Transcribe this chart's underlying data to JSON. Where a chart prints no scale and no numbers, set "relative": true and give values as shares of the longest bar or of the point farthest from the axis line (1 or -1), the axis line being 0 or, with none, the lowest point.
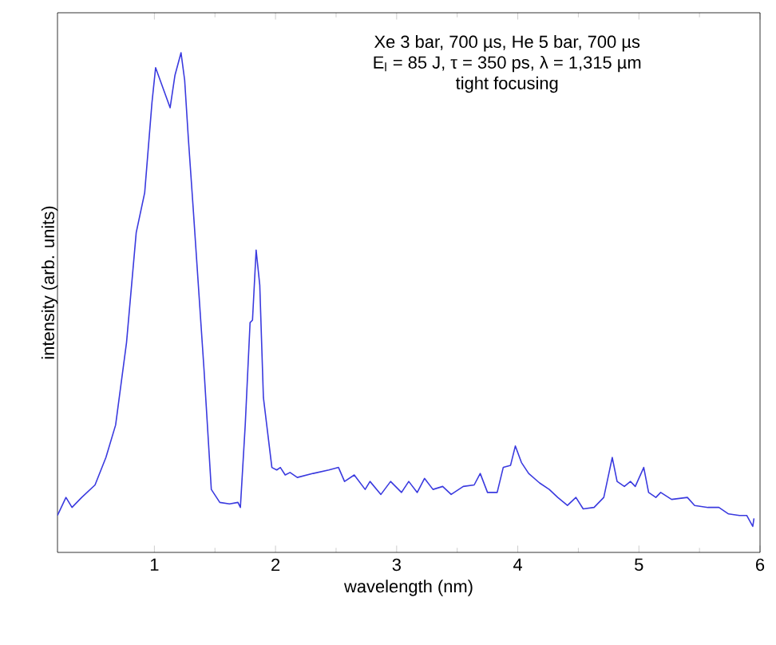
{
  "chart_data": {
    "type": "line",
    "relative": true,
    "xlabel": "wavelength (nm)",
    "ylabel": "intensity (arb. units)",
    "annotations": [
      "Xe 3 bar, 700 µs, He 5 bar, 700 µs",
      "E$_{l}$ = 85 J, τ = 350 ps, λ = 1,315 µm",
      "tight focusing"
    ],
    "xlim": [
      0.2,
      6
    ],
    "xticks": [
      1,
      2,
      3,
      4,
      5,
      6
    ],
    "marker": "none",
    "line_style": "solid",
    "series": [
      {
        "color": "#3a3adf",
        "x": [
          0.2,
          0.27,
          0.32,
          0.4,
          0.51,
          0.6,
          0.68,
          0.77,
          0.85,
          0.92,
          0.98,
          1.01,
          1.07,
          1.13,
          1.17,
          1.22,
          1.25,
          1.28,
          1.32,
          1.41,
          1.47,
          1.54,
          1.62,
          1.69,
          1.71,
          1.75,
          1.79,
          1.81,
          1.84,
          1.87,
          1.9,
          1.97,
          2.01,
          2.04,
          2.08,
          2.12,
          2.18,
          2.31,
          2.44,
          2.52,
          2.57,
          2.65,
          2.74,
          2.78,
          2.87,
          2.95,
          3.04,
          3.1,
          3.17,
          3.23,
          3.3,
          3.38,
          3.45,
          3.55,
          3.64,
          3.69,
          3.75,
          3.83,
          3.88,
          3.94,
          3.98,
          4.03,
          4.09,
          4.18,
          4.26,
          4.33,
          4.41,
          4.48,
          4.54,
          4.63,
          4.71,
          4.78,
          4.82,
          4.88,
          4.93,
          4.97,
          5.04,
          5.08,
          5.14,
          5.18,
          5.27,
          5.4,
          5.46,
          5.57,
          5.66,
          5.74,
          5.83,
          5.89,
          5.94,
          5.95
        ],
        "values": [
          0.074,
          0.11,
          0.09,
          0.11,
          0.135,
          0.19,
          0.255,
          0.42,
          0.64,
          0.72,
          0.9,
          0.97,
          0.93,
          0.89,
          0.955,
          1.0,
          0.945,
          0.83,
          0.69,
          0.365,
          0.126,
          0.1,
          0.097,
          0.1,
          0.09,
          0.255,
          0.46,
          0.465,
          0.605,
          0.535,
          0.31,
          0.17,
          0.165,
          0.17,
          0.155,
          0.16,
          0.15,
          0.158,
          0.165,
          0.17,
          0.142,
          0.155,
          0.126,
          0.142,
          0.116,
          0.142,
          0.12,
          0.142,
          0.12,
          0.148,
          0.126,
          0.132,
          0.116,
          0.132,
          0.135,
          0.158,
          0.12,
          0.12,
          0.17,
          0.174,
          0.213,
          0.18,
          0.158,
          0.139,
          0.126,
          0.11,
          0.094,
          0.11,
          0.087,
          0.09,
          0.11,
          0.19,
          0.142,
          0.132,
          0.142,
          0.132,
          0.17,
          0.12,
          0.11,
          0.12,
          0.106,
          0.11,
          0.094,
          0.09,
          0.09,
          0.077,
          0.074,
          0.074,
          0.052,
          0.068
        ]
      }
    ]
  }
}
